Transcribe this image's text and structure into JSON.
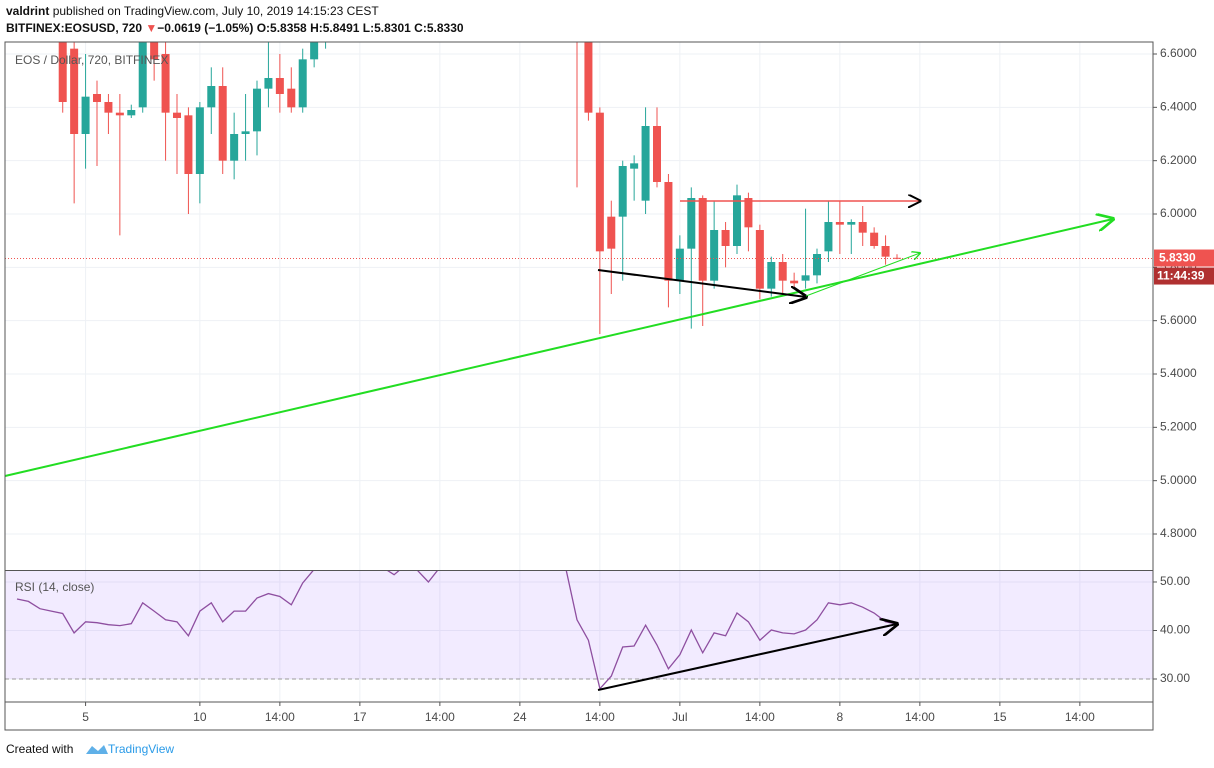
{
  "header": {
    "author": "valdrint",
    "published": "published on TradingView.com, July 10, 2019 14:15:23 CEST",
    "symbol": "BITFINEX:EOSUSD, 720",
    "arrow": "▼",
    "change": "−0.0619 (−1.05%)",
    "ohlc": [
      {
        "label": "O:",
        "value": "5.8358"
      },
      {
        "label": "H:",
        "value": "5.8491"
      },
      {
        "label": "L:",
        "value": "5.8301"
      },
      {
        "label": "C:",
        "value": "5.8330"
      }
    ]
  },
  "footer": {
    "created": "Created with",
    "brand": "TradingView"
  },
  "chart_data": [
    {
      "type": "candlestick",
      "title": "EOS / Dollar, 720, BITFINEX",
      "up_color": "#26a69a",
      "down_color": "#ef5350",
      "x": [
        -54,
        -53,
        -52,
        -51,
        -50,
        -49,
        -48,
        -47,
        -46,
        -45,
        -44,
        -43,
        -42,
        -41,
        -40,
        -39,
        -38,
        -37,
        -36,
        -35,
        -34,
        -33,
        -32,
        -31,
        -9,
        -8,
        -7,
        -6,
        -5,
        -4,
        -3,
        -2,
        -1,
        0,
        1,
        2,
        3,
        4,
        5,
        6,
        7,
        8,
        9,
        10,
        11,
        12,
        13,
        14,
        15,
        16,
        17,
        18,
        19
      ],
      "open": [
        6.7,
        6.62,
        6.3,
        6.45,
        6.42,
        6.38,
        6.37,
        6.4,
        6.65,
        6.6,
        6.38,
        6.37,
        6.15,
        6.4,
        6.48,
        6.2,
        6.3,
        6.31,
        6.47,
        6.51,
        6.47,
        6.4,
        6.58,
        6.65,
        6.9,
        6.75,
        6.38,
        5.99,
        5.99,
        6.17,
        6.05,
        6.33,
        6.12,
        5.75,
        5.87,
        6.06,
        5.75,
        5.94,
        5.88,
        6.06,
        5.94,
        5.72,
        5.82,
        5.75,
        5.75,
        5.77,
        5.86,
        5.97,
        5.96,
        5.97,
        5.93,
        5.88,
        5.8358
      ],
      "high": [
        6.75,
        6.7,
        6.6,
        6.5,
        6.45,
        6.45,
        6.41,
        6.7,
        6.7,
        6.65,
        6.45,
        6.4,
        6.42,
        6.55,
        6.55,
        6.38,
        6.45,
        6.5,
        6.65,
        6.6,
        6.55,
        6.62,
        6.72,
        6.75,
        6.95,
        6.8,
        6.4,
        6.05,
        6.2,
        6.22,
        6.4,
        6.4,
        6.15,
        5.92,
        6.1,
        6.07,
        6.05,
        5.97,
        6.11,
        6.08,
        5.96,
        5.84,
        5.85,
        5.78,
        6.02,
        5.87,
        6.05,
        6.05,
        5.98,
        6.03,
        5.95,
        5.92,
        5.8491
      ],
      "low": [
        6.38,
        6.04,
        6.17,
        6.18,
        6.3,
        5.92,
        6.36,
        6.38,
        6.5,
        6.2,
        6.15,
        6.0,
        6.04,
        6.3,
        6.15,
        6.13,
        6.2,
        6.22,
        6.4,
        6.38,
        6.38,
        6.38,
        6.55,
        6.62,
        6.1,
        6.35,
        5.55,
        5.7,
        5.75,
        6.05,
        6.0,
        6.1,
        5.65,
        5.7,
        5.57,
        5.58,
        5.72,
        5.8,
        5.85,
        5.86,
        5.68,
        5.69,
        5.7,
        5.72,
        5.72,
        5.74,
        5.82,
        5.85,
        5.85,
        5.88,
        5.87,
        5.81,
        5.8301
      ],
      "close": [
        6.42,
        6.3,
        6.44,
        6.42,
        6.38,
        6.37,
        6.39,
        6.65,
        6.58,
        6.38,
        6.36,
        6.15,
        6.4,
        6.48,
        6.2,
        6.3,
        6.31,
        6.47,
        6.51,
        6.45,
        6.4,
        6.58,
        6.65,
        6.7,
        6.8,
        6.38,
        5.86,
        5.87,
        6.18,
        6.19,
        6.33,
        6.12,
        5.75,
        5.87,
        6.06,
        5.75,
        5.94,
        5.88,
        6.07,
        5.95,
        5.72,
        5.82,
        5.75,
        5.74,
        5.77,
        5.85,
        5.97,
        5.96,
        5.97,
        5.93,
        5.88,
        5.84,
        5.833
      ],
      "xlim": [
        -59.05,
        41.4
      ],
      "ylim": [
        4.665,
        6.645
      ],
      "xticks": [
        {
          "value": -52,
          "label": "5"
        },
        {
          "value": -42,
          "label": "10"
        },
        {
          "value": -35,
          "label": "14:00"
        },
        {
          "value": -28,
          "label": "17"
        },
        {
          "value": -21,
          "label": "14:00"
        },
        {
          "value": -14,
          "label": "24"
        },
        {
          "value": -7,
          "label": "14:00"
        },
        {
          "value": 0,
          "label": "Jul"
        },
        {
          "value": 7,
          "label": "14:00"
        },
        {
          "value": 14,
          "label": "8"
        },
        {
          "value": 21,
          "label": "14:00"
        },
        {
          "value": 28,
          "label": "15"
        },
        {
          "value": 35,
          "label": "14:00"
        }
      ],
      "yticks": [
        {
          "value": 6.6,
          "label": "6.6000"
        },
        {
          "value": 6.4,
          "label": "6.4000"
        },
        {
          "value": 6.2,
          "label": "6.2000"
        },
        {
          "value": 6.0,
          "label": "6.0000"
        },
        {
          "value": 5.8,
          "label": "5.8000"
        },
        {
          "value": 5.6,
          "label": "5.6000"
        },
        {
          "value": 5.4,
          "label": "5.4000"
        },
        {
          "value": 5.2,
          "label": "5.2000"
        },
        {
          "value": 5.0,
          "label": "5.0000"
        },
        {
          "value": 4.8,
          "label": "4.8000"
        }
      ],
      "grid": true,
      "price_line": {
        "value": 5.833,
        "label": "5.8330",
        "color": "#ef5350"
      },
      "countdown": "11:44:39"
    },
    {
      "type": "line",
      "title": "RSI (14, close)",
      "color": "#8e4fa0",
      "x": [
        -58,
        -57,
        -56,
        -55,
        -54,
        -53,
        -52,
        -51,
        -50,
        -49,
        -48,
        -47,
        -46,
        -45,
        -44,
        -43,
        -42,
        -41,
        -40,
        -39,
        -38,
        -37,
        -36,
        -35,
        -34,
        -33,
        -32,
        -31,
        -30,
        -29,
        -28,
        -27,
        -26,
        -25,
        -24,
        -23,
        -22,
        -21,
        -20,
        -19,
        -18,
        -17,
        -16,
        -15,
        -14,
        -13,
        -12,
        -11,
        -10,
        -9,
        -8,
        -7,
        -6,
        -5,
        -4,
        -3,
        -2,
        -1,
        0,
        1,
        2,
        3,
        4,
        5,
        6,
        7,
        8,
        9,
        10,
        11,
        12,
        13,
        14,
        15,
        16,
        17,
        18,
        19
      ],
      "values": [
        46.5,
        46.0,
        44.5,
        44.0,
        43.5,
        39.5,
        41.8,
        41.6,
        41.2,
        41.0,
        41.4,
        45.7,
        44.0,
        42.2,
        41.8,
        38.9,
        44.0,
        45.7,
        41.8,
        44.0,
        44.0,
        46.7,
        47.6,
        47.0,
        45.3,
        49.8,
        52.6,
        54.0,
        null,
        null,
        null,
        null,
        53.0,
        51.5,
        53.5,
        52.5,
        50.0,
        53.0,
        null,
        null,
        null,
        null,
        null,
        null,
        null,
        null,
        null,
        null,
        53.0,
        42.2,
        38.0,
        28.0,
        30.6,
        36.6,
        36.8,
        41.1,
        37.0,
        32.1,
        35.0,
        40.1,
        35.4,
        39.5,
        38.9,
        43.6,
        41.8,
        38.0,
        40.1,
        39.5,
        39.3,
        40.1,
        42.2,
        45.7,
        45.3,
        45.7,
        44.8,
        43.6,
        41.8,
        41.3
      ],
      "xlim": [
        -59.05,
        41.4
      ],
      "ylim": [
        25.26,
        52.47
      ],
      "yticks": [
        {
          "value": 50,
          "label": "50.00"
        },
        {
          "value": 40,
          "label": "40.00"
        },
        {
          "value": 30,
          "label": "30.00"
        }
      ],
      "band": [
        30,
        70
      ],
      "grid": true
    }
  ]
}
